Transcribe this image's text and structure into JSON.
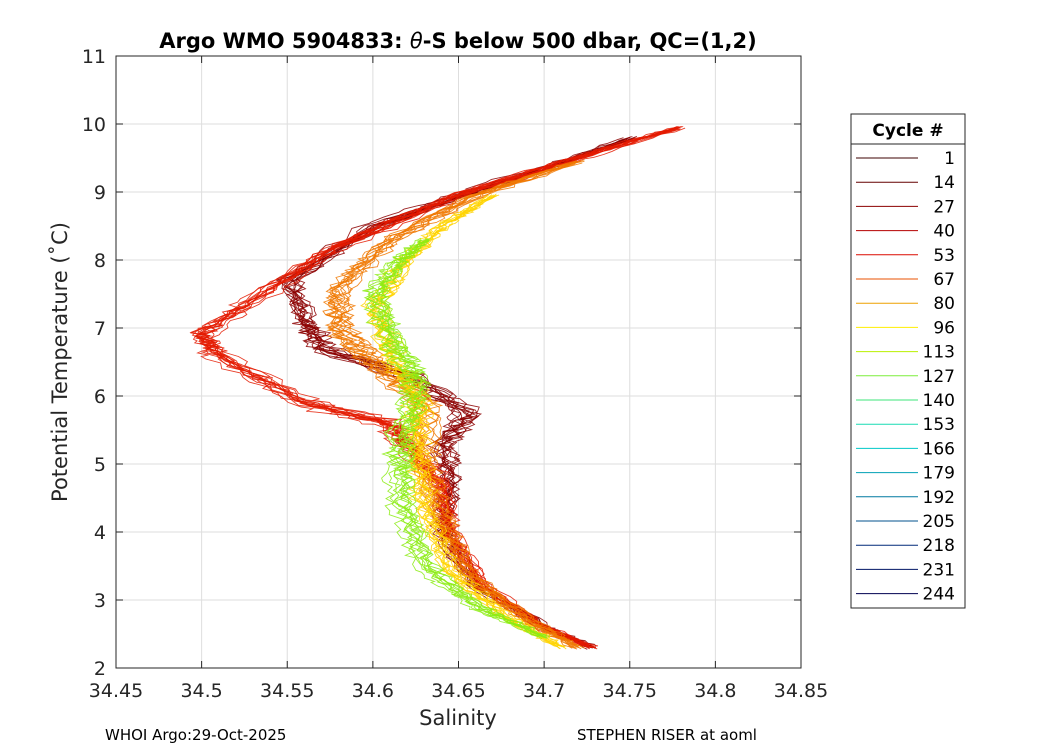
{
  "chart_data": {
    "type": "line",
    "title_prefix": "Argo WMO 5904833: ",
    "title_theta": "θ",
    "title_suffix": "-S below 500 dbar,  QC=(1,2)",
    "xlabel": "Salinity",
    "ylabel": "Potential Temperature (˚C)",
    "xlim": [
      34.45,
      34.85
    ],
    "ylim": [
      2,
      11
    ],
    "x_ticks": [
      "34.45",
      "34.5",
      "34.55",
      "34.6",
      "34.65",
      "34.7",
      "34.75",
      "34.8",
      "34.85"
    ],
    "y_ticks": [
      "2",
      "3",
      "4",
      "5",
      "6",
      "7",
      "8",
      "9",
      "10",
      "11"
    ],
    "grid": true,
    "legend": {
      "title": "Cycle #",
      "placement": "outside-right",
      "entries": [
        {
          "label": "1",
          "color": "#3d0000"
        },
        {
          "label": "14",
          "color": "#650000"
        },
        {
          "label": "27",
          "color": "#8c0000"
        },
        {
          "label": "40",
          "color": "#b40000"
        },
        {
          "label": "53",
          "color": "#dc0a00"
        },
        {
          "label": "67",
          "color": "#e85000"
        },
        {
          "label": "80",
          "color": "#eea000"
        },
        {
          "label": "96",
          "color": "#ffee00"
        },
        {
          "label": "113",
          "color": "#b9f000"
        },
        {
          "label": "127",
          "color": "#7dee3c"
        },
        {
          "label": "140",
          "color": "#3ce678"
        },
        {
          "label": "153",
          "color": "#19dcb4"
        },
        {
          "label": "166",
          "color": "#00c8c8"
        },
        {
          "label": "179",
          "color": "#00a0b4"
        },
        {
          "label": "192",
          "color": "#0078a0"
        },
        {
          "label": "205",
          "color": "#00508c"
        },
        {
          "label": "218",
          "color": "#002878"
        },
        {
          "label": "231",
          "color": "#001464"
        },
        {
          "label": "244",
          "color": "#000050"
        }
      ]
    },
    "groups": [
      {
        "name": "cycles-1-40",
        "color": "#8c0000",
        "count": 12,
        "anchors": [
          [
            34.728,
            2.3
          ],
          [
            34.7,
            2.6
          ],
          [
            34.66,
            3.2
          ],
          [
            34.64,
            4.0
          ],
          [
            34.645,
            4.7
          ],
          [
            34.64,
            5.3
          ],
          [
            34.655,
            5.75
          ],
          [
            34.62,
            6.3
          ],
          [
            34.57,
            6.7
          ],
          [
            34.56,
            7.1
          ],
          [
            34.55,
            7.7
          ],
          [
            34.6,
            8.5
          ],
          [
            34.65,
            8.95
          ],
          [
            34.7,
            9.35
          ],
          [
            34.75,
            9.8
          ]
        ]
      },
      {
        "name": "cycles-27-67",
        "color": "#e41a00",
        "count": 14,
        "anchors": [
          [
            34.728,
            2.3
          ],
          [
            34.7,
            2.6
          ],
          [
            34.665,
            3.2
          ],
          [
            34.645,
            4.0
          ],
          [
            34.64,
            4.7
          ],
          [
            34.62,
            5.3
          ],
          [
            34.61,
            5.6
          ],
          [
            34.56,
            5.9
          ],
          [
            34.51,
            6.6
          ],
          [
            34.5,
            6.9
          ],
          [
            34.53,
            7.4
          ],
          [
            34.58,
            8.2
          ],
          [
            34.65,
            8.95
          ],
          [
            34.72,
            9.5
          ],
          [
            34.78,
            9.95
          ]
        ]
      },
      {
        "name": "cycles-53-96",
        "color": "#f07800",
        "count": 12,
        "anchors": [
          [
            34.72,
            2.3
          ],
          [
            34.69,
            2.7
          ],
          [
            34.655,
            3.4
          ],
          [
            34.64,
            4.2
          ],
          [
            34.63,
            5.0
          ],
          [
            34.63,
            5.9
          ],
          [
            34.6,
            6.5
          ],
          [
            34.58,
            7.0
          ],
          [
            34.58,
            7.6
          ],
          [
            34.61,
            8.3
          ],
          [
            34.66,
            8.95
          ],
          [
            34.72,
            9.45
          ]
        ]
      },
      {
        "name": "cycles-80-113",
        "color": "#ffd400",
        "count": 10,
        "anchors": [
          [
            34.71,
            2.3
          ],
          [
            34.68,
            2.7
          ],
          [
            34.645,
            3.4
          ],
          [
            34.63,
            4.3
          ],
          [
            34.625,
            5.2
          ],
          [
            34.625,
            6.0
          ],
          [
            34.61,
            6.6
          ],
          [
            34.6,
            7.3
          ],
          [
            34.62,
            8.0
          ],
          [
            34.64,
            8.5
          ],
          [
            34.67,
            8.95
          ]
        ]
      },
      {
        "name": "cycles-113-140",
        "color": "#8cec14",
        "count": 10,
        "anchors": [
          [
            34.7,
            2.45
          ],
          [
            34.66,
            2.9
          ],
          [
            34.63,
            3.5
          ],
          [
            34.615,
            4.5
          ],
          [
            34.615,
            5.4
          ],
          [
            34.625,
            6.2
          ],
          [
            34.61,
            6.8
          ],
          [
            34.6,
            7.5
          ],
          [
            34.615,
            8.0
          ],
          [
            34.63,
            8.3
          ]
        ]
      }
    ]
  },
  "footer": {
    "left": "WHOI Argo:29-Oct-2025",
    "right": "STEPHEN RISER at aoml"
  }
}
